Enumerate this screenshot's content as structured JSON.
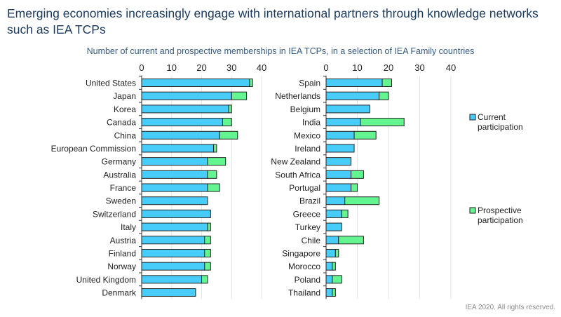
{
  "title": "Emerging economies increasingly engage with international partners through knowledge networks such as IEA TCPs",
  "footer": "IEA 2020. All rights reserved.",
  "colors": {
    "current": "#48cdfb",
    "prospective": "#63f590",
    "title": "#1b3a5c",
    "grid": "#e6e6e6"
  },
  "chart_data": {
    "type": "bar",
    "orientation": "horizontal",
    "stacked": true,
    "title": "Number of current and prospective memberships in IEA TCPs, in a selection of IEA Family countries",
    "legend": {
      "placement": "right",
      "entries": [
        "Current participation",
        "Prospective participation"
      ]
    },
    "grid": true,
    "xlim": [
      0,
      40
    ],
    "xticks": [
      0,
      10,
      20,
      30,
      40
    ],
    "panels": [
      {
        "categories": [
          "United States",
          "Japan",
          "Korea",
          "Canada",
          "China",
          "European Commission",
          "Germany",
          "Australia",
          "France",
          "Sweden",
          "Switzerland",
          "Italy",
          "Austria",
          "Finland",
          "Norway",
          "United Kingdom",
          "Denmark"
        ],
        "series": [
          {
            "name": "Current participation",
            "values": [
              36,
              30,
              29,
              27,
              26,
              24,
              22,
              22,
              22,
              22,
              23,
              22,
              21,
              21,
              21,
              20,
              18
            ]
          },
          {
            "name": "Prospective participation",
            "values": [
              1,
              5,
              1,
              3,
              6,
              1,
              6,
              3,
              4,
              0,
              0,
              1,
              2,
              2,
              2,
              2,
              0
            ]
          }
        ]
      },
      {
        "categories": [
          "Spain",
          "Netherlands",
          "Belgium",
          "India",
          "Mexico",
          "Ireland",
          "New Zealand",
          "South Africa",
          "Portugal",
          "Brazil",
          "Greece",
          "Turkey",
          "Chile",
          "Singapore",
          "Morocco",
          "Poland",
          "Thailand"
        ],
        "series": [
          {
            "name": "Current participation",
            "values": [
              18,
              17,
              14,
              11,
              9,
              9,
              8,
              8,
              8,
              6,
              5,
              5,
              4,
              3,
              2,
              2,
              2
            ]
          },
          {
            "name": "Prospective participation",
            "values": [
              3,
              3,
              0,
              14,
              7,
              0,
              0,
              4,
              2,
              11,
              2,
              0,
              8,
              1,
              1,
              3,
              1
            ]
          }
        ]
      }
    ]
  }
}
